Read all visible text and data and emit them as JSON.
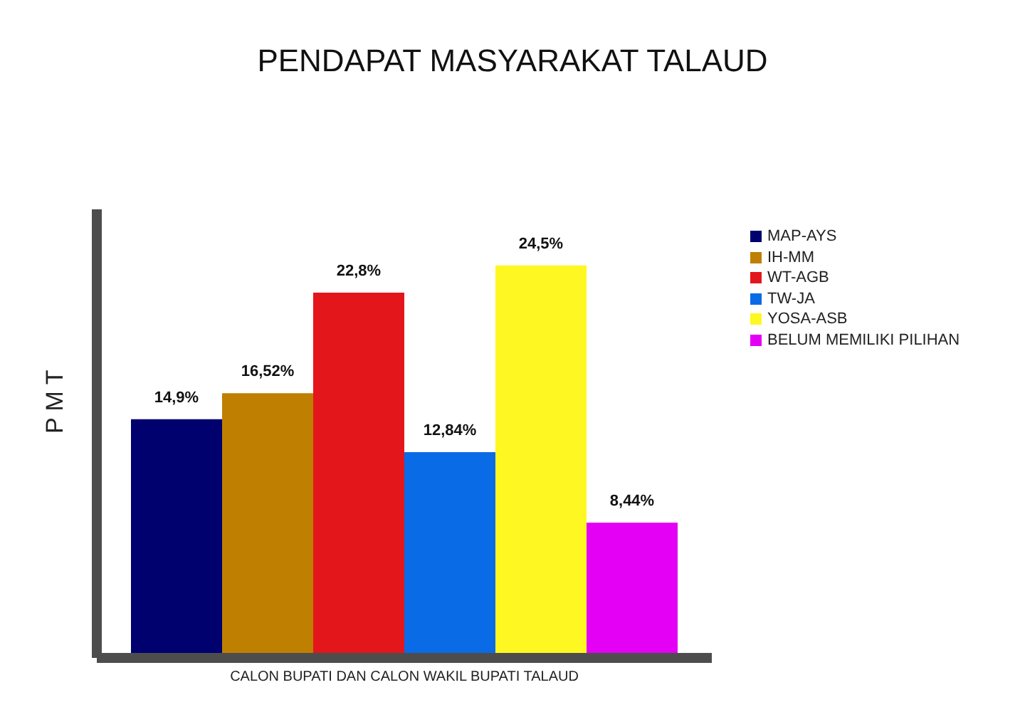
{
  "chart_data": {
    "type": "bar",
    "title": "PENDAPAT MASYARAKAT TALAUD",
    "xlabel": "CALON BUPATI DAN CALON WAKIL BUPATI TALAUD",
    "ylabel": "P M T",
    "categories": [
      null
    ],
    "series": [
      {
        "name": "MAP-AYS",
        "color": "#00006e",
        "values": [
          14.9
        ],
        "value_labels": [
          "14,9%"
        ]
      },
      {
        "name": "IH-MM",
        "color": "#bf7f00",
        "values": [
          16.52
        ],
        "value_labels": [
          "16,52%"
        ]
      },
      {
        "name": "WT-AGB",
        "color": "#e3171b",
        "values": [
          22.8
        ],
        "value_labels": [
          "22,8%"
        ]
      },
      {
        "name": "TW-JA",
        "color": "#0a6be6",
        "values": [
          12.84
        ],
        "value_labels": [
          "12,84%"
        ]
      },
      {
        "name": "YOSA-ASB",
        "color": "#fff722",
        "values": [
          24.5
        ],
        "value_labels": [
          "24,5%"
        ]
      },
      {
        "name": "BELUM MEMILIKI PILIHAN",
        "color": "#e400f5",
        "values": [
          8.44
        ],
        "value_labels": [
          "8,44%"
        ]
      }
    ],
    "legend": "top right"
  }
}
